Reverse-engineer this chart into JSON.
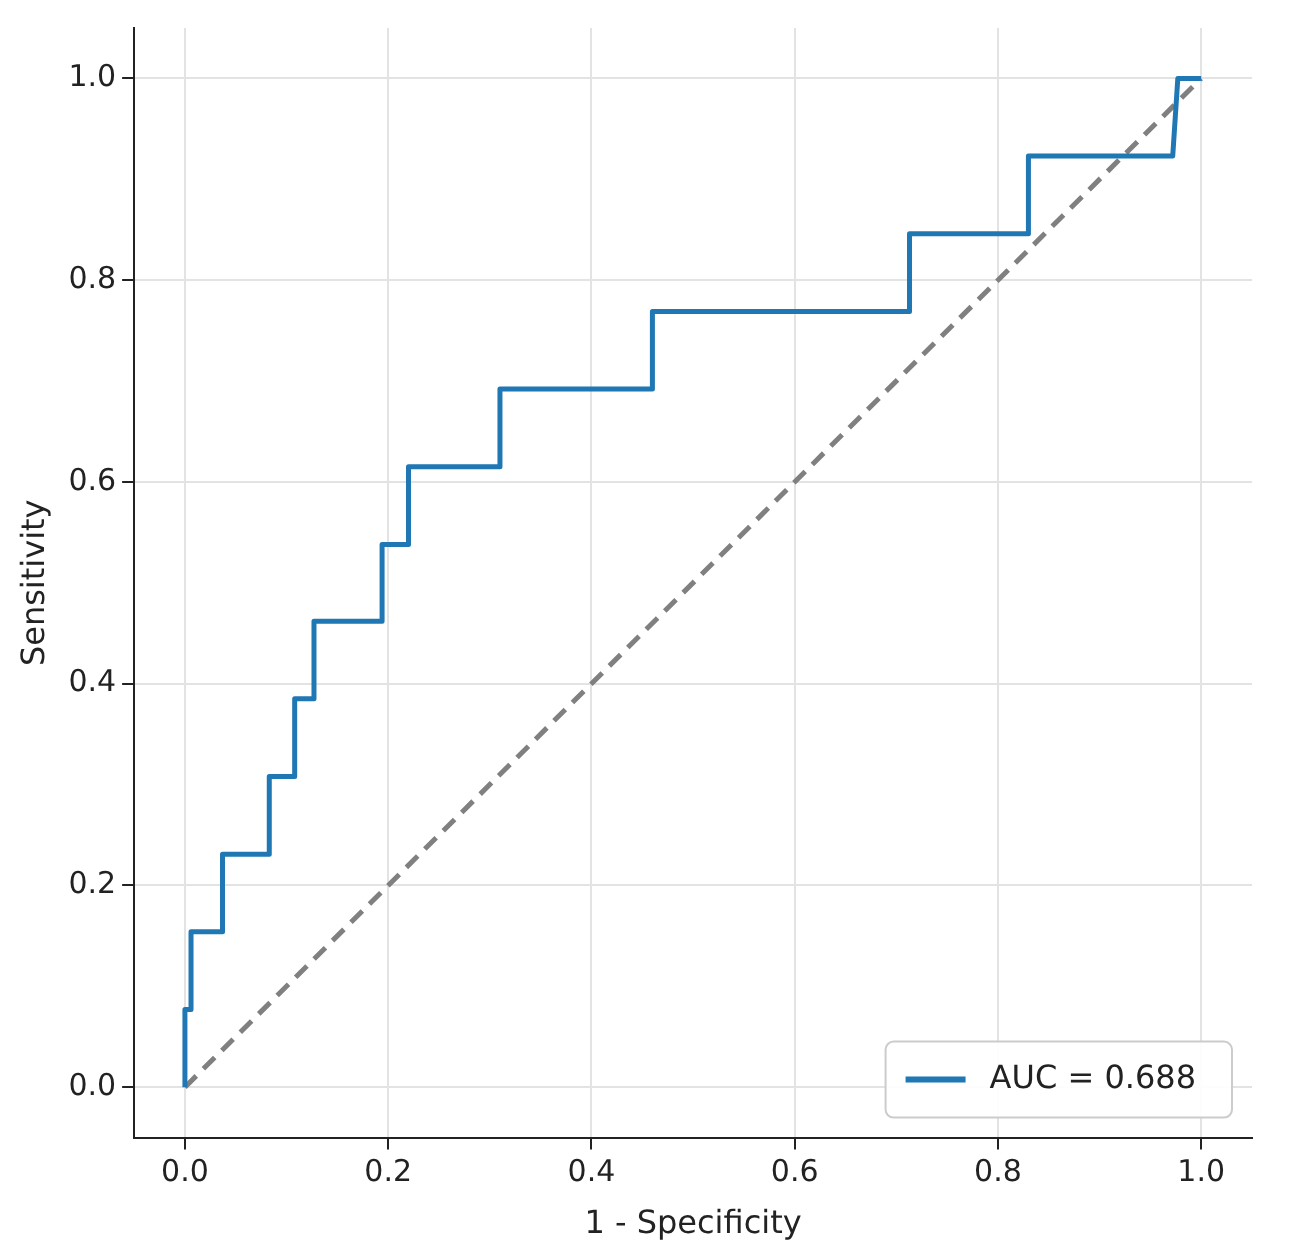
{
  "chart_data": {
    "type": "line",
    "xlabel": "1 - Specificity",
    "ylabel": "Sensitivity",
    "xlim": [
      -0.05,
      1.05
    ],
    "ylim": [
      -0.05,
      1.05
    ],
    "xticks": [
      {
        "value": 0,
        "label": "0.0"
      },
      0.2,
      0.4,
      0.6,
      0.8,
      {
        "value": 1,
        "label": "1.0"
      }
    ],
    "yticks": [
      {
        "value": 0,
        "label": "0.0"
      },
      0.2,
      0.4,
      0.6,
      0.8,
      {
        "value": 1,
        "label": "1.0"
      }
    ],
    "grid": true,
    "legend": "bottom right",
    "marker": "none",
    "series": [
      {
        "name": "AUC = 0.688",
        "color": "#1f77b4",
        "line_style": "solid",
        "x": [
          0,
          0,
          0.006,
          0.006,
          0.037,
          0.037,
          0.083,
          0.083,
          0.108,
          0.108,
          0.127,
          0.127,
          0.194,
          0.194,
          0.22,
          0.22,
          0.31,
          0.31,
          0.46,
          0.46,
          0.713,
          0.713,
          0.83,
          0.83,
          0.972,
          0.977,
          1
        ],
        "values": [
          0,
          0.077,
          0.077,
          0.154,
          0.154,
          0.231,
          0.231,
          0.308,
          0.308,
          0.385,
          0.385,
          0.462,
          0.462,
          0.538,
          0.538,
          0.615,
          0.615,
          0.692,
          0.692,
          0.769,
          0.769,
          0.846,
          0.846,
          0.923,
          0.923,
          1,
          1
        ]
      },
      {
        "color": "#808080",
        "line_style": "dashed",
        "x": [
          0,
          1
        ],
        "values": [
          0,
          1
        ]
      }
    ]
  }
}
